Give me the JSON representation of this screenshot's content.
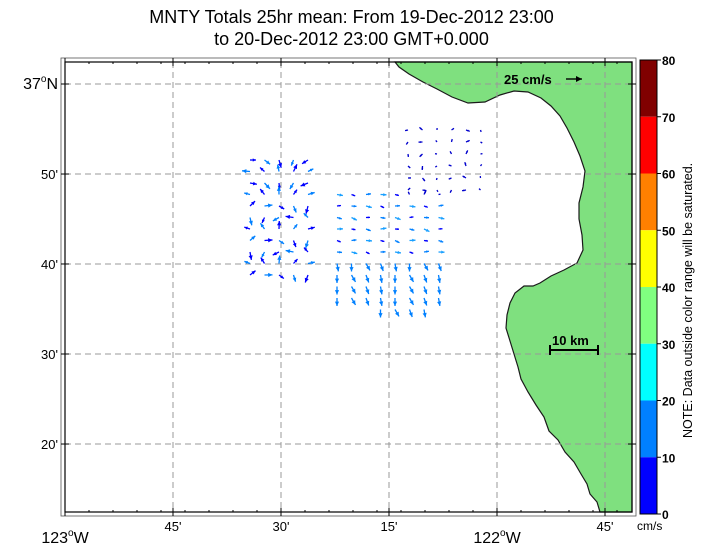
{
  "title": {
    "line1": "MNTY Totals 25hr mean: From 19-Dec-2012 23:00",
    "line2": "to 20-Dec-2012 23:00 GMT+0.000"
  },
  "map": {
    "lat_labels": [
      {
        "deg": "37",
        "sup": "o",
        "hemi": "N",
        "lat": 37.0
      },
      {
        "text": "50'",
        "lat": 36.8333
      },
      {
        "text": "40'",
        "lat": 36.6667
      },
      {
        "text": "30'",
        "lat": 36.5
      },
      {
        "text": "20'",
        "lat": 36.3333
      }
    ],
    "lon_labels": [
      {
        "deg": "123",
        "sup": "o",
        "hemi": "W",
        "lon": -123.0
      },
      {
        "text": "45'",
        "lon": -122.75
      },
      {
        "text": "30'",
        "lon": -122.5
      },
      {
        "text": "15'",
        "lon": -122.25
      },
      {
        "deg": "122",
        "sup": "o",
        "hemi": "W",
        "lon": -122.0
      },
      {
        "text": "45'",
        "lon": -121.75
      }
    ],
    "reference_vector_label": "25 cm/s",
    "scale_bar_label": "10 km",
    "land_color": "#7fe07f",
    "ocean_color": "#ffffff"
  },
  "colorbar": {
    "ticks": [
      "80",
      "70",
      "60",
      "50",
      "40",
      "30",
      "20",
      "10",
      "0"
    ],
    "unit": "cm/s",
    "colors": [
      "#800000",
      "#ff0000",
      "#ff8000",
      "#ffff00",
      "#80ff80",
      "#00ffff",
      "#0080ff",
      "#0000ff"
    ],
    "note": "NOTE: Data outside color range will be saturated."
  }
}
